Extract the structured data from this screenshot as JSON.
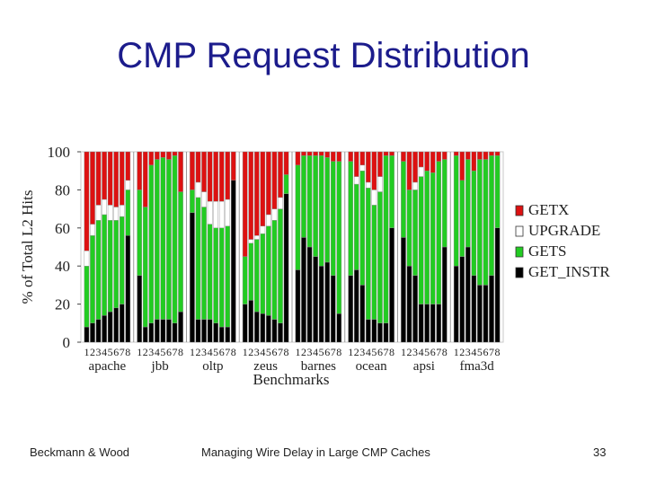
{
  "slide": {
    "title": "CMP Request Distribution",
    "footer_left": "Beckmann & Wood",
    "footer_center": "Managing Wire Delay in Large CMP Caches",
    "page_number": "33"
  },
  "chart_data": {
    "type": "bar",
    "stacked": true,
    "ylabel": "% of Total L2 Hits",
    "xlabel": "Benchmarks",
    "ylim": [
      0,
      100
    ],
    "yticks": [
      0,
      20,
      40,
      60,
      80,
      100
    ],
    "legend_position": "right",
    "configuration_labels": [
      "1",
      "2",
      "3",
      "4",
      "5",
      "6",
      "7",
      "8"
    ],
    "benchmarks": [
      "apache",
      "jbb",
      "oltp",
      "zeus",
      "barnes",
      "ocean",
      "apsi",
      "fma3d"
    ],
    "colors": {
      "GETX": "#dd1111",
      "UPGRADE": "#ffffff",
      "GETS": "#22cc22",
      "GET_INSTR": "#000000"
    },
    "series": [
      {
        "name": "GET_INSTR",
        "values": [
          [
            8,
            10,
            12,
            14,
            16,
            18,
            20,
            56
          ],
          [
            35,
            8,
            10,
            12,
            12,
            12,
            10,
            16
          ],
          [
            68,
            12,
            12,
            12,
            10,
            8,
            8,
            85
          ],
          [
            20,
            22,
            16,
            15,
            14,
            12,
            10,
            78
          ],
          [
            38,
            55,
            50,
            45,
            40,
            42,
            35,
            15
          ],
          [
            35,
            38,
            30,
            12,
            12,
            10,
            10,
            60
          ],
          [
            55,
            40,
            35,
            20,
            20,
            20,
            20,
            50
          ],
          [
            40,
            45,
            50,
            35,
            30,
            30,
            35,
            60
          ]
        ]
      },
      {
        "name": "GETS",
        "values": [
          [
            32,
            46,
            52,
            53,
            48,
            46,
            46,
            24
          ],
          [
            45,
            63,
            83,
            84,
            85,
            84,
            88,
            63
          ],
          [
            12,
            64,
            59,
            50,
            50,
            52,
            53,
            0
          ],
          [
            25,
            30,
            38,
            42,
            47,
            52,
            60,
            10
          ],
          [
            55,
            43,
            48,
            53,
            58,
            55,
            60,
            80
          ],
          [
            60,
            45,
            60,
            69,
            60,
            69,
            88,
            38
          ],
          [
            40,
            40,
            45,
            67,
            70,
            69,
            75,
            46
          ],
          [
            58,
            40,
            46,
            55,
            66,
            66,
            63,
            38
          ]
        ]
      },
      {
        "name": "UPGRADE",
        "values": [
          [
            8,
            6,
            8,
            8,
            8,
            7,
            6,
            5
          ],
          [
            0,
            0,
            0,
            0,
            0,
            0,
            0,
            0
          ],
          [
            0,
            8,
            8,
            12,
            14,
            14,
            14,
            0
          ],
          [
            0,
            2,
            2,
            4,
            6,
            6,
            6,
            0
          ],
          [
            0,
            0,
            0,
            0,
            0,
            0,
            0,
            0
          ],
          [
            0,
            4,
            3,
            3,
            8,
            8,
            0,
            0
          ],
          [
            0,
            0,
            4,
            5,
            0,
            0,
            0,
            0
          ],
          [
            0,
            0,
            0,
            0,
            0,
            0,
            0,
            0
          ]
        ]
      },
      {
        "name": "GETX",
        "values": [
          [
            52,
            38,
            28,
            25,
            28,
            29,
            28,
            15
          ],
          [
            20,
            29,
            7,
            4,
            3,
            4,
            2,
            21
          ],
          [
            20,
            16,
            21,
            26,
            26,
            26,
            25,
            15
          ],
          [
            55,
            46,
            44,
            39,
            33,
            30,
            24,
            12
          ],
          [
            7,
            2,
            2,
            2,
            2,
            3,
            5,
            5
          ],
          [
            5,
            13,
            7,
            16,
            20,
            13,
            2,
            2
          ],
          [
            5,
            20,
            16,
            8,
            10,
            11,
            5,
            4
          ],
          [
            2,
            15,
            4,
            10,
            4,
            4,
            2,
            2
          ]
        ]
      }
    ]
  }
}
